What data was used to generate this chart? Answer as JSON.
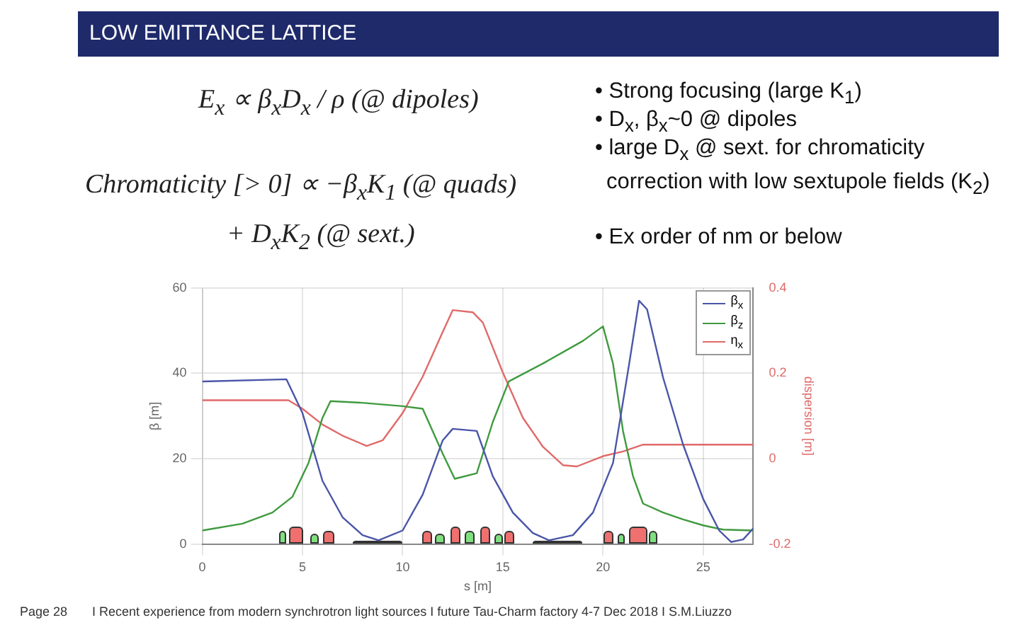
{
  "chart_data": {
    "type": "line",
    "title": "LOW EMITTANCE LATTICE",
    "xlabel": "s [m]",
    "ylabel": "β [m]",
    "y2label": "dispersion [m]",
    "xlim": [
      0,
      27.5
    ],
    "xticks": [
      0,
      5,
      10,
      15,
      20,
      25
    ],
    "ylim": [
      0,
      60
    ],
    "yticks": [
      0,
      20,
      40,
      60
    ],
    "y2lim": [
      -0.2,
      0.4
    ],
    "y2ticks": [
      -0.2,
      0,
      0.2,
      0.4
    ],
    "grid": true,
    "legend": "top right",
    "marker": "none",
    "line_style": "solid",
    "series": [
      {
        "name": "β$_{x}$",
        "color": "#4a55a8",
        "x": [
          0,
          4.2,
          5,
          6,
          7,
          8,
          8.8,
          10,
          11,
          12,
          12.5,
          13.7,
          14.5,
          15.5,
          16.5,
          17.3,
          18.5,
          19.5,
          20.5,
          21.3,
          21.8,
          22.2,
          23,
          24,
          25,
          25.8,
          26.4,
          27,
          27.5
        ],
        "values": [
          38.1,
          38.6,
          30.7,
          14.8,
          6.3,
          2.1,
          0.9,
          3.2,
          11.6,
          24.3,
          27,
          26.5,
          15.9,
          7.4,
          2.6,
          0.9,
          2.1,
          7.4,
          19,
          42,
          57,
          55,
          39,
          23.3,
          10.6,
          3.2,
          0.5,
          1.1,
          3.7
        ]
      },
      {
        "name": "β$_{z}$",
        "color": "#3f9a3f",
        "x": [
          0,
          2,
          3.5,
          4.5,
          5.3,
          6,
          6.4,
          8,
          10,
          11,
          12,
          12.6,
          13.7,
          14.5,
          15.3,
          17,
          19,
          20,
          20.5,
          21,
          21.5,
          22,
          23,
          24,
          25,
          26,
          27.5
        ],
        "values": [
          3.2,
          4.8,
          7.4,
          11.1,
          19,
          29.6,
          33.5,
          33.1,
          32.3,
          31.7,
          21.2,
          15.3,
          16.6,
          28.6,
          38.1,
          42.3,
          47.6,
          51,
          42.3,
          26.5,
          15.9,
          9.5,
          7.4,
          5.8,
          4.4,
          3.4,
          3.2
        ]
      },
      {
        "name": "η$_{x}$",
        "color": "#e06a6a",
        "axis": "y2",
        "x": [
          0,
          4.3,
          5,
          6,
          7,
          8.2,
          9,
          10,
          11,
          12,
          12.5,
          13.5,
          14,
          15,
          16,
          17,
          18,
          18.7,
          20,
          21,
          22,
          27.5
        ],
        "values": [
          0.137,
          0.137,
          0.117,
          0.08,
          0.054,
          0.03,
          0.043,
          0.107,
          0.192,
          0.297,
          0.348,
          0.343,
          0.319,
          0.202,
          0.096,
          0.028,
          -0.015,
          -0.018,
          0.006,
          0.017,
          0.033,
          0.033
        ]
      }
    ],
    "annotations": [
      "E$_{x}$ ∝ β$_{x}$D$_{x}$ / ρ   (@ dipoles)",
      "Chromaticity [> 0] ∝ −β$_{x}$K$_{1}$ (@ quads)",
      "+ D$_{x}$K$_{2}$ (@ sext.)",
      "• Strong focusing (large K$_{1}$)",
      "• D$_{x}$, β$_{x}$~0 @ dipoles",
      "• large D$_{x}$ @ sext. for chromaticity correction with low sextupole fields (K$_{2}$)",
      "• Ex order of nm or below",
      "Page 28",
      "I Recent experience from modern synchrotron light sources I future Tau-Charm factory 4-7 Dec 2018 I S.M.Liuzzo"
    ]
  }
}
